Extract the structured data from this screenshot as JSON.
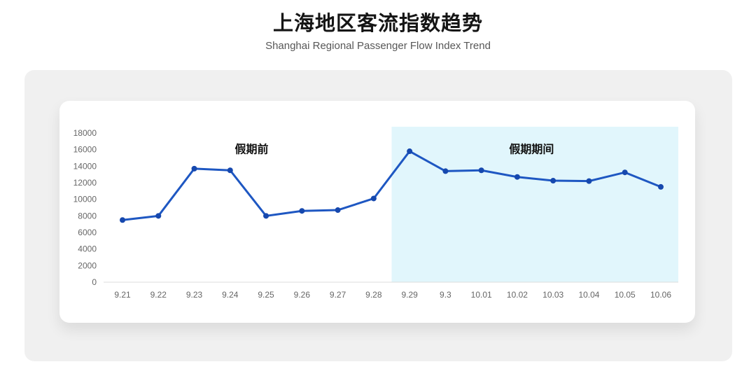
{
  "page": {
    "title": "上海地区客流指数趋势",
    "subtitle": "Shanghai Regional Passenger Flow Index Trend"
  },
  "chart_data": {
    "type": "line",
    "title": "上海地区客流指数趋势",
    "subtitle": "Shanghai Regional Passenger Flow Index Trend",
    "x": [
      "9.21",
      "9.22",
      "9.23",
      "9.24",
      "9.25",
      "9.26",
      "9.27",
      "9.28",
      "9.29",
      "9.3",
      "10.01",
      "10.02",
      "10.03",
      "10.04",
      "10.05",
      "10.06"
    ],
    "series": [
      {
        "name": "客流指数",
        "values": [
          7500,
          8000,
          13700,
          13500,
          8000,
          8600,
          8700,
          10100,
          15800,
          13400,
          13500,
          12700,
          12250,
          12200,
          13250,
          11500
        ]
      }
    ],
    "xlabel": "",
    "ylabel": "",
    "ylim": [
      0,
      18000
    ],
    "y_ticks": [
      0,
      2000,
      4000,
      6000,
      8000,
      10000,
      12000,
      14000,
      16000,
      18000
    ],
    "grid": false,
    "legend": "none",
    "annotations": [
      {
        "label": "假期前",
        "x_index": 3.6,
        "y_value": 16100
      },
      {
        "label": "假期期间",
        "x_index": 11.4,
        "y_value": 16100
      }
    ],
    "highlight_region": {
      "meaning": "假期期间",
      "from_x_index": 7.5,
      "to_x_index": "plot-right-edge",
      "color": "#e1f6fc"
    },
    "colors": {
      "line": "#1e57c2",
      "point": "#1648ae",
      "axis_text": "#666666",
      "baseline": "#dcdcdc",
      "annotation_text": "#111111"
    }
  }
}
